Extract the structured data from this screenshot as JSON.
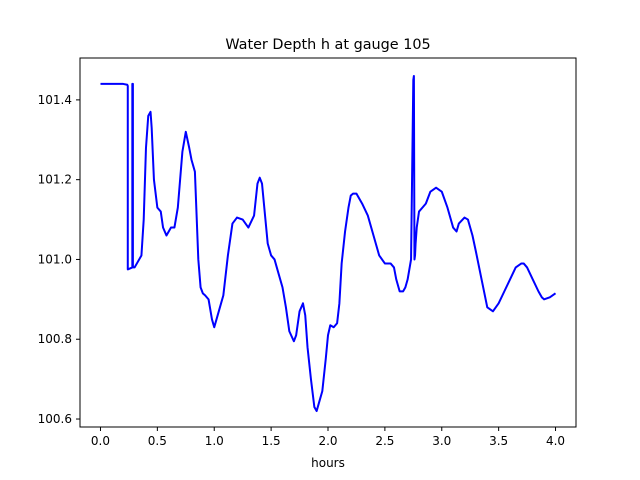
{
  "chart_data": {
    "type": "line",
    "title": "Water Depth h at gauge 105",
    "xlabel": "hours",
    "ylabel": "",
    "xlim": [
      -0.18,
      4.18
    ],
    "ylim": [
      100.58,
      101.505
    ],
    "x_ticks": [
      0.0,
      0.5,
      1.0,
      1.5,
      2.0,
      2.5,
      3.0,
      3.5,
      4.0
    ],
    "x_tick_labels": [
      "0.0",
      "0.5",
      "1.0",
      "1.5",
      "2.0",
      "2.5",
      "3.0",
      "3.5",
      "4.0"
    ],
    "y_ticks": [
      100.6,
      100.8,
      101.0,
      101.2,
      101.4
    ],
    "y_tick_labels": [
      "100.6",
      "100.8",
      "101.0",
      "101.2",
      "101.4"
    ],
    "grid": false,
    "colors": {
      "line": "#0000ff",
      "axes": "#000000",
      "background": "#ffffff"
    },
    "series": [
      {
        "x": [
          0.0,
          0.1,
          0.2,
          0.235,
          0.24,
          0.24,
          0.28,
          0.28,
          0.285,
          0.285,
          0.3,
          0.32,
          0.36,
          0.38,
          0.4,
          0.42,
          0.44,
          0.45,
          0.47,
          0.5,
          0.53,
          0.55,
          0.58,
          0.6,
          0.62,
          0.65,
          0.68,
          0.72,
          0.75,
          0.78,
          0.8,
          0.83,
          0.86,
          0.88,
          0.9,
          0.92,
          0.95,
          0.98,
          1.0,
          1.02,
          1.05,
          1.08,
          1.12,
          1.16,
          1.2,
          1.25,
          1.3,
          1.35,
          1.38,
          1.4,
          1.42,
          1.45,
          1.47,
          1.5,
          1.53,
          1.56,
          1.6,
          1.63,
          1.66,
          1.7,
          1.72,
          1.75,
          1.78,
          1.8,
          1.82,
          1.85,
          1.88,
          1.9,
          1.92,
          1.95,
          1.98,
          2.0,
          2.02,
          2.05,
          2.08,
          2.1,
          2.12,
          2.15,
          2.18,
          2.2,
          2.22,
          2.25,
          2.28,
          2.3,
          2.35,
          2.4,
          2.45,
          2.5,
          2.55,
          2.58,
          2.6,
          2.63,
          2.66,
          2.68,
          2.7,
          2.73,
          2.75,
          2.755,
          2.76,
          2.765,
          2.77,
          2.78,
          2.8,
          2.83,
          2.86,
          2.9,
          2.95,
          3.0,
          3.05,
          3.1,
          3.13,
          3.15,
          3.2,
          3.23,
          3.27,
          3.3,
          3.35,
          3.4,
          3.45,
          3.5,
          3.55,
          3.6,
          3.65,
          3.7,
          3.72,
          3.75,
          3.8,
          3.85,
          3.88,
          3.9,
          3.95,
          4.0
        ],
        "y": [
          101.44,
          101.44,
          101.44,
          101.438,
          101.435,
          100.975,
          100.98,
          101.44,
          101.44,
          100.98,
          100.98,
          100.99,
          101.01,
          101.1,
          101.28,
          101.36,
          101.37,
          101.33,
          101.2,
          101.13,
          101.12,
          101.08,
          101.06,
          101.07,
          101.08,
          101.08,
          101.13,
          101.27,
          101.32,
          101.28,
          101.25,
          101.22,
          101.0,
          100.93,
          100.915,
          100.91,
          100.9,
          100.85,
          100.83,
          100.85,
          100.88,
          100.91,
          101.01,
          101.09,
          101.105,
          101.1,
          101.08,
          101.11,
          101.19,
          101.205,
          101.19,
          101.1,
          101.04,
          101.01,
          101.0,
          100.97,
          100.93,
          100.88,
          100.82,
          100.795,
          100.81,
          100.87,
          100.89,
          100.86,
          100.78,
          100.7,
          100.63,
          100.62,
          100.64,
          100.67,
          100.75,
          100.81,
          100.835,
          100.83,
          100.84,
          100.89,
          100.99,
          101.07,
          101.13,
          101.16,
          101.165,
          101.165,
          101.15,
          101.14,
          101.11,
          101.06,
          101.01,
          100.99,
          100.99,
          100.98,
          100.95,
          100.92,
          100.92,
          100.93,
          100.95,
          101.0,
          101.45,
          101.46,
          101.0,
          101.01,
          101.04,
          101.08,
          101.12,
          101.13,
          101.14,
          101.17,
          101.18,
          101.17,
          101.13,
          101.08,
          101.07,
          101.09,
          101.105,
          101.1,
          101.06,
          101.02,
          100.95,
          100.88,
          100.87,
          100.89,
          100.92,
          100.95,
          100.98,
          100.99,
          100.99,
          100.98,
          100.95,
          100.92,
          100.905,
          100.9,
          100.905,
          100.915
        ]
      }
    ]
  }
}
